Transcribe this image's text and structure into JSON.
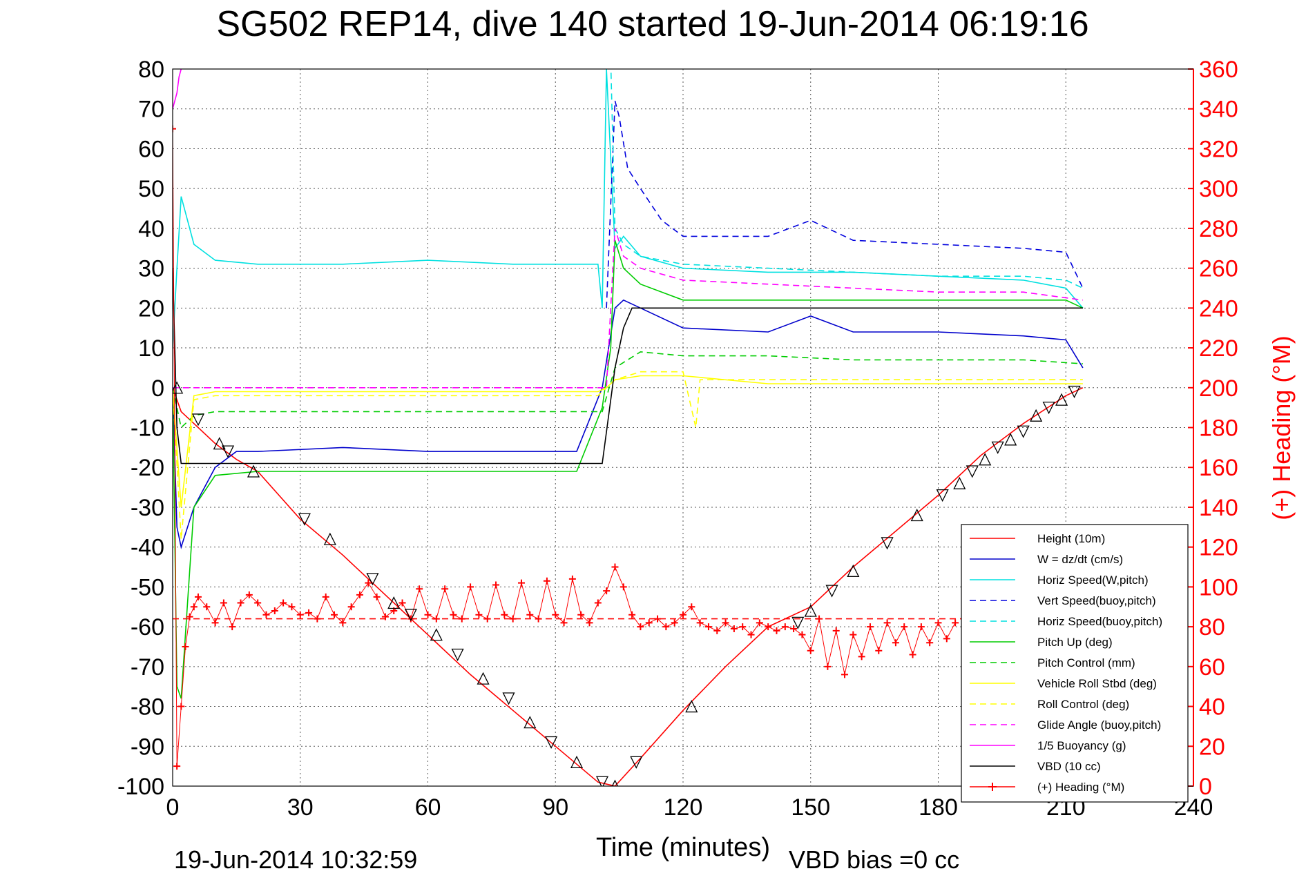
{
  "chart_data": {
    "type": "line",
    "title": "SG502 REP14, dive 140 started 19-Jun-2014 06:19:16",
    "xlabel": "Time (minutes)",
    "ylabel_right": "(+) Heading (°M)",
    "footer_left": "19-Jun-2014 10:32:59",
    "footer_right": "VBD bias =0 cc",
    "xlim": [
      0,
      240
    ],
    "ylim_left": [
      -100,
      80
    ],
    "ylim_right": [
      0,
      360
    ],
    "x_ticks": [
      "0",
      "30",
      "60",
      "90",
      "120",
      "150",
      "180",
      "210",
      "240"
    ],
    "y_ticks_left": [
      "80",
      "70",
      "60",
      "50",
      "40",
      "30",
      "20",
      "10",
      "0",
      "-10",
      "-20",
      "-30",
      "-40",
      "-50",
      "-60",
      "-70",
      "-80",
      "-90",
      "-100"
    ],
    "y_ticks_right": [
      "360",
      "340",
      "320",
      "300",
      "280",
      "260",
      "240",
      "220",
      "200",
      "180",
      "160",
      "140",
      "120",
      "100",
      "80",
      "60",
      "40",
      "20",
      "0"
    ],
    "grid": true,
    "legend_position": "bottom-right",
    "series": [
      {
        "name": "Height (10m)",
        "color": "#ff0000",
        "style": "solid",
        "x": [
          0,
          2,
          5,
          10,
          15,
          20,
          30,
          40,
          50,
          60,
          70,
          80,
          90,
          100,
          104,
          110,
          120,
          130,
          140,
          150,
          160,
          170,
          180,
          190,
          200,
          210,
          214
        ],
        "y": [
          0,
          -6,
          -9,
          -14,
          -18,
          -21,
          -33,
          -42,
          -52,
          -62,
          -72,
          -81,
          -90,
          -99,
          -100,
          -93,
          -81,
          -70,
          -60,
          -55,
          -45,
          -36,
          -27,
          -17,
          -9,
          -2,
          0
        ]
      },
      {
        "name": "W = dz/dt (cm/s)",
        "color": "#0000cc",
        "style": "solid",
        "x": [
          0,
          1,
          2,
          5,
          10,
          15,
          20,
          40,
          60,
          80,
          95,
          101,
          104,
          106,
          110,
          120,
          140,
          150,
          160,
          180,
          200,
          210,
          214
        ],
        "y": [
          0,
          -35,
          -40,
          -30,
          -20,
          -16,
          -16,
          -15,
          -16,
          -16,
          -16,
          0,
          20,
          22,
          20,
          15,
          14,
          18,
          14,
          14,
          13,
          12,
          5
        ]
      },
      {
        "name": "Horiz Speed(W,pitch)",
        "color": "#00e0e0",
        "style": "solid",
        "x": [
          0,
          1,
          2,
          5,
          10,
          20,
          40,
          60,
          80,
          100,
          101,
          102,
          104,
          106,
          110,
          120,
          140,
          160,
          180,
          200,
          210,
          214
        ],
        "y": [
          10,
          30,
          48,
          36,
          32,
          31,
          31,
          32,
          31,
          31,
          20,
          80,
          35,
          38,
          33,
          30,
          29,
          29,
          28,
          27,
          25,
          20
        ]
      },
      {
        "name": "Vert Speed(buoy,pitch)",
        "color": "#0000dd",
        "style": "dashed",
        "x": [
          102,
          104,
          105,
          107,
          110,
          115,
          120,
          140,
          150,
          160,
          180,
          200,
          210,
          214
        ],
        "y": [
          20,
          72,
          68,
          55,
          50,
          42,
          38,
          38,
          42,
          37,
          36,
          35,
          34,
          25
        ]
      },
      {
        "name": "Horiz Speed(buoy,pitch)",
        "color": "#00e0e0",
        "style": "dashed",
        "x": [
          102,
          103,
          104,
          106,
          110,
          120,
          140,
          160,
          180,
          200,
          210,
          214
        ],
        "y": [
          80,
          82,
          40,
          36,
          33,
          31,
          30,
          29,
          28,
          28,
          27,
          25
        ]
      },
      {
        "name": "Pitch Up (deg)",
        "color": "#00cc00",
        "style": "solid",
        "x": [
          0,
          1,
          2,
          5,
          10,
          20,
          40,
          60,
          80,
          95,
          101,
          103,
          104,
          106,
          110,
          120,
          140,
          160,
          180,
          200,
          210,
          214
        ],
        "y": [
          0,
          -75,
          -78,
          -30,
          -22,
          -21,
          -21,
          -21,
          -21,
          -21,
          -5,
          10,
          37,
          30,
          26,
          22,
          22,
          22,
          22,
          22,
          22,
          20
        ]
      },
      {
        "name": "Pitch Control (mm)",
        "color": "#00cc00",
        "style": "dashed",
        "x": [
          0,
          2,
          5,
          10,
          20,
          40,
          60,
          80,
          95,
          101,
          104,
          110,
          120,
          140,
          160,
          180,
          200,
          214
        ],
        "y": [
          0,
          -10,
          -7,
          -6,
          -6,
          -6,
          -6,
          -6,
          -6,
          -6,
          5,
          9,
          8,
          8,
          7,
          7,
          7,
          6
        ]
      },
      {
        "name": "Vehicle Roll Stbd (deg)",
        "color": "#ffff00",
        "style": "solid",
        "x": [
          0,
          2,
          5,
          10,
          20,
          40,
          60,
          80,
          100,
          102,
          104,
          110,
          120,
          140,
          150,
          160,
          180,
          200,
          214
        ],
        "y": [
          0,
          -30,
          -2,
          -1,
          -1,
          -1,
          -1,
          -1,
          -1,
          0,
          2,
          3,
          3,
          1,
          1,
          1,
          1,
          1,
          1
        ]
      },
      {
        "name": "Roll Control (deg)",
        "color": "#ffff00",
        "style": "dashed",
        "x": [
          0,
          2,
          5,
          10,
          20,
          40,
          60,
          80,
          100,
          104,
          110,
          120,
          123,
          124,
          126,
          140,
          160,
          180,
          200,
          214
        ],
        "y": [
          0,
          -38,
          -3,
          -2,
          -2,
          -2,
          -2,
          -2,
          -2,
          2,
          4,
          4,
          -10,
          2,
          2,
          2,
          2,
          2,
          2,
          2
        ]
      },
      {
        "name": "Glide Angle (buoy,pitch)",
        "color": "#ff00ff",
        "style": "dashed",
        "x": [
          0,
          20,
          40,
          60,
          80,
          100,
          102,
          104,
          106,
          110,
          120,
          140,
          160,
          180,
          200,
          214
        ],
        "y": [
          0,
          0,
          0,
          0,
          0,
          0,
          0,
          40,
          33,
          30,
          27,
          26,
          25,
          24,
          24,
          22
        ]
      },
      {
        "name": "1/5 Buoyancy (g)",
        "color": "#ff00ff",
        "style": "solid",
        "x": [
          0,
          1,
          1.5,
          2
        ],
        "y": [
          70,
          74,
          78,
          80
        ]
      },
      {
        "name": "VBD (10 cc)",
        "color": "#000000",
        "style": "solid",
        "x": [
          0,
          1,
          2,
          10,
          40,
          60,
          80,
          100,
          101,
          104,
          106,
          108,
          120,
          140,
          160,
          180,
          200,
          214
        ],
        "y": [
          30,
          -10,
          -19,
          -19,
          -19,
          -19,
          -19,
          -19,
          -19,
          5,
          15,
          20,
          20,
          20,
          20,
          20,
          20,
          20
        ]
      },
      {
        "name": "(+) Heading (°M)",
        "color": "#ff0000",
        "style": "markers",
        "axis": "right",
        "x": [
          0,
          1,
          2,
          3,
          4,
          5,
          6,
          8,
          10,
          12,
          14,
          16,
          18,
          20,
          22,
          24,
          26,
          28,
          30,
          32,
          34,
          36,
          38,
          40,
          42,
          44,
          46,
          48,
          50,
          52,
          54,
          56,
          58,
          60,
          62,
          64,
          66,
          68,
          70,
          72,
          74,
          76,
          78,
          80,
          82,
          84,
          86,
          88,
          90,
          92,
          94,
          96,
          98,
          100,
          102,
          104,
          106,
          108,
          110,
          112,
          114,
          116,
          118,
          120,
          122,
          124,
          126,
          128,
          130,
          132,
          134,
          136,
          138,
          140,
          142,
          144,
          146,
          148,
          150,
          152,
          154,
          156,
          158,
          160,
          162,
          164,
          166,
          168,
          170,
          172,
          174,
          176,
          178,
          180,
          182,
          184
        ],
        "y": [
          330,
          10,
          40,
          70,
          85,
          90,
          95,
          90,
          82,
          92,
          80,
          92,
          96,
          92,
          86,
          88,
          92,
          90,
          86,
          87,
          84,
          95,
          86,
          82,
          90,
          96,
          102,
          95,
          85,
          88,
          92,
          84,
          99,
          86,
          84,
          99,
          86,
          84,
          100,
          86,
          84,
          101,
          86,
          84,
          102,
          86,
          84,
          103,
          86,
          82,
          104,
          86,
          82,
          92,
          98,
          110,
          100,
          86,
          80,
          82,
          84,
          80,
          82,
          86,
          90,
          82,
          80,
          78,
          82,
          79,
          80,
          76,
          82,
          80,
          78,
          80,
          79,
          76,
          68,
          84,
          60,
          78,
          56,
          76,
          65,
          80,
          68,
          82,
          72,
          80,
          66,
          80,
          72,
          82,
          74,
          82
        ]
      },
      {
        "name": "Heading reference",
        "color": "#ff0000",
        "style": "dashed",
        "axis": "right",
        "legend": false,
        "x": [
          0,
          214
        ],
        "y": [
          84,
          84
        ]
      }
    ],
    "markers": [
      {
        "x": 1,
        "y": 0
      },
      {
        "x": 6,
        "y": -8
      },
      {
        "x": 11,
        "y": -14
      },
      {
        "x": 13,
        "y": -16
      },
      {
        "x": 19,
        "y": -21
      },
      {
        "x": 31,
        "y": -33
      },
      {
        "x": 37,
        "y": -38
      },
      {
        "x": 47,
        "y": -48
      },
      {
        "x": 52,
        "y": -54
      },
      {
        "x": 56,
        "y": -57
      },
      {
        "x": 62,
        "y": -62
      },
      {
        "x": 67,
        "y": -67
      },
      {
        "x": 73,
        "y": -73
      },
      {
        "x": 79,
        "y": -78
      },
      {
        "x": 84,
        "y": -84
      },
      {
        "x": 89,
        "y": -89
      },
      {
        "x": 95,
        "y": -94
      },
      {
        "x": 101,
        "y": -99
      },
      {
        "x": 104,
        "y": -100
      },
      {
        "x": 109,
        "y": -94
      },
      {
        "x": 122,
        "y": -80
      },
      {
        "x": 147,
        "y": -59
      },
      {
        "x": 150,
        "y": -56
      },
      {
        "x": 155,
        "y": -51
      },
      {
        "x": 160,
        "y": -46
      },
      {
        "x": 168,
        "y": -39
      },
      {
        "x": 175,
        "y": -32
      },
      {
        "x": 181,
        "y": -27
      },
      {
        "x": 185,
        "y": -24
      },
      {
        "x": 188,
        "y": -21
      },
      {
        "x": 191,
        "y": -18
      },
      {
        "x": 194,
        "y": -15
      },
      {
        "x": 197,
        "y": -13
      },
      {
        "x": 200,
        "y": -11
      },
      {
        "x": 203,
        "y": -7
      },
      {
        "x": 206,
        "y": -5
      },
      {
        "x": 209,
        "y": -3
      },
      {
        "x": 212,
        "y": -1
      }
    ]
  }
}
